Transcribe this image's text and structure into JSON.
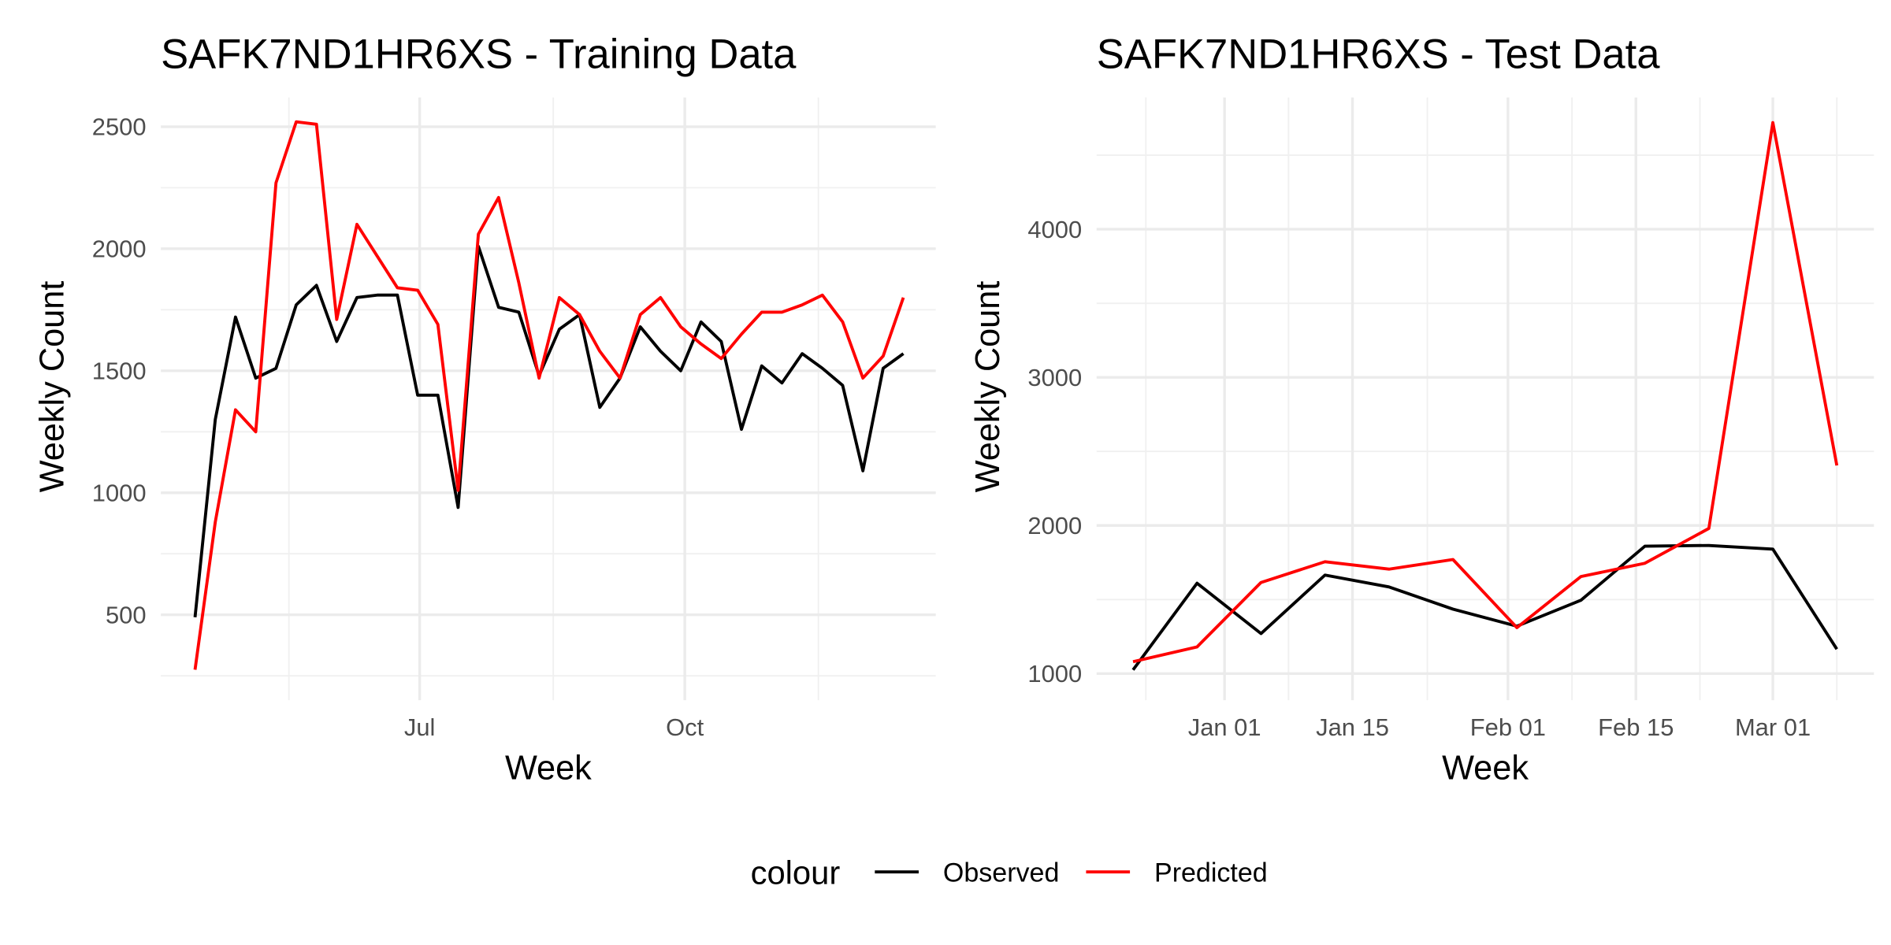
{
  "legend": {
    "title": "colour",
    "position": "bottom",
    "entries": [
      {
        "name": "Observed",
        "color": "#000000"
      },
      {
        "name": "Predicted",
        "color": "#ff0000"
      }
    ]
  },
  "chart_data": [
    {
      "type": "line",
      "title": "SAFK7ND1HR6XS - Training Data",
      "x_label": "Week",
      "y_label": "Weekly Count",
      "categories": [
        null,
        null,
        null,
        null,
        null,
        null,
        null,
        null,
        null,
        null,
        null,
        null,
        null,
        null,
        null,
        null,
        null,
        null,
        null,
        null,
        null,
        null,
        null,
        null,
        null,
        null,
        null,
        null,
        null,
        null,
        null,
        null,
        null,
        null,
        null,
        null
      ],
      "series": [
        {
          "values": [
            490,
            1300,
            1720,
            1470,
            1510,
            1770,
            1850,
            1620,
            1800,
            1810,
            1810,
            1400,
            1400,
            940,
            2010,
            1760,
            1740,
            1480,
            1670,
            1730,
            1350,
            1470,
            1680,
            1580,
            1500,
            1700,
            1620,
            1260,
            1520,
            1450,
            1570,
            1510,
            1440,
            1090,
            1510,
            1570
          ]
        },
        {
          "values": [
            275,
            880,
            1340,
            1250,
            2270,
            2520,
            2510,
            1710,
            2100,
            1970,
            1840,
            1830,
            1690,
            1010,
            2060,
            2210,
            1860,
            1470,
            1800,
            1730,
            1580,
            1470,
            1730,
            1800,
            1680,
            1610,
            1550,
            1650,
            1740,
            1740,
            1770,
            1810,
            1700,
            1470,
            1560,
            1800
          ]
        }
      ],
      "xlim": [
        -1.69,
        36.6
      ],
      "xticks": [
        {
          "value": 11.1,
          "label": "Jul"
        },
        {
          "value": 24.2,
          "label": "Oct"
        }
      ],
      "xminor": [
        4.64,
        17.7,
        30.8
      ],
      "ylim": [
        150,
        2620
      ],
      "yticks": [
        500,
        1000,
        1500,
        2000,
        2500
      ],
      "yminor": [
        250,
        750,
        1250,
        1750,
        2250
      ],
      "grid": true
    },
    {
      "type": "line",
      "title": "SAFK7ND1HR6XS - Test Data",
      "x_label": "Week",
      "y_label": "Weekly Count",
      "categories": [
        null,
        null,
        null,
        null,
        null,
        null,
        null,
        null,
        null,
        null,
        null,
        null
      ],
      "series": [
        {
          "values": [
            1025,
            1610,
            1270,
            1665,
            1585,
            1435,
            1320,
            1495,
            1860,
            1865,
            1840,
            1165
          ]
        },
        {
          "values": [
            1080,
            1180,
            1615,
            1755,
            1705,
            1770,
            1310,
            1655,
            1745,
            1980,
            4720,
            2405
          ]
        }
      ],
      "xlim": [
        -0.57,
        11.58
      ],
      "xticks": [
        {
          "value": 1.43,
          "label": "Jan 01"
        },
        {
          "value": 3.43,
          "label": "Jan 15"
        },
        {
          "value": 5.86,
          "label": "Feb 01"
        },
        {
          "value": 7.86,
          "label": "Feb 15"
        },
        {
          "value": 10,
          "label": "Mar 01"
        }
      ],
      "xminor": [
        0.2,
        2.43,
        4.6,
        6.86,
        8.86,
        11
      ],
      "ylim": [
        820,
        4890
      ],
      "yticks": [
        1000,
        2000,
        3000,
        4000
      ],
      "yminor": [
        1500,
        2500,
        3500,
        4500
      ],
      "grid": true
    }
  ]
}
